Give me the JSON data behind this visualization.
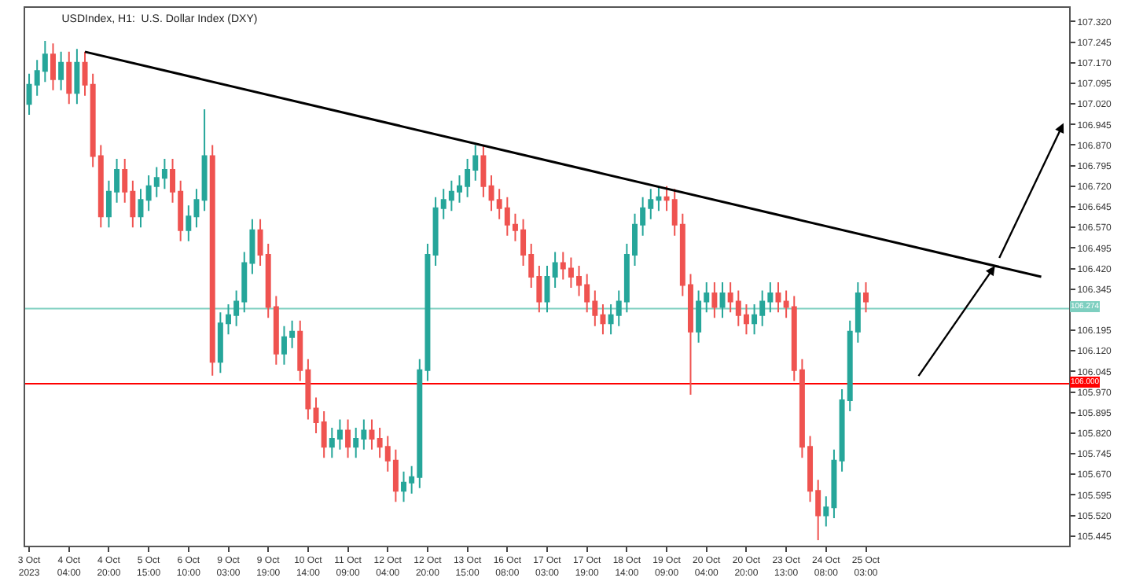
{
  "chart_data": {
    "type": "candlestick",
    "title": "USDIndex, H1:  U.S. Dollar Index (DXY)",
    "categories": [
      "3 Oct 2023",
      null,
      null,
      null,
      null,
      "4 Oct 04:00",
      null,
      null,
      null,
      null,
      "4 Oct 20:00",
      null,
      null,
      null,
      null,
      "5 Oct 15:00",
      null,
      null,
      null,
      null,
      "6 Oct 10:00",
      null,
      null,
      null,
      null,
      "9 Oct 03:00",
      null,
      null,
      null,
      null,
      "9 Oct 19:00",
      null,
      null,
      null,
      null,
      "10 Oct 14:00",
      null,
      null,
      null,
      null,
      "11 Oct 09:00",
      null,
      null,
      null,
      null,
      "12 Oct 04:00",
      null,
      null,
      null,
      null,
      "12 Oct 20:00",
      null,
      null,
      null,
      null,
      "13 Oct 15:00",
      null,
      null,
      null,
      null,
      "16 Oct 08:00",
      null,
      null,
      null,
      null,
      "17 Oct 03:00",
      null,
      null,
      null,
      null,
      "17 Oct 19:00",
      null,
      null,
      null,
      null,
      "18 Oct 14:00",
      null,
      null,
      null,
      null,
      "19 Oct 09:00",
      null,
      null,
      null,
      null,
      "20 Oct 04:00",
      null,
      null,
      null,
      null,
      "20 Oct 20:00",
      null,
      null,
      null,
      null,
      "23 Oct 13:00",
      null,
      null,
      null,
      null,
      "24 Oct 08:00",
      null,
      null,
      null,
      null,
      "25 Oct 03:00",
      null,
      null,
      null,
      null,
      null,
      null,
      null,
      null,
      null,
      null,
      null,
      null,
      null,
      null,
      null,
      null,
      null,
      null,
      null,
      null,
      null,
      null,
      null,
      null,
      null
    ],
    "colors": [
      "#26a69a",
      "#26a69a",
      "#26a69a",
      "#ef5350",
      "#26a69a",
      "#ef5350",
      "#26a69a",
      "#ef5350",
      "#ef5350",
      "#ef5350",
      "#26a69a",
      "#26a69a",
      "#ef5350",
      "#ef5350",
      "#26a69a",
      "#26a69a",
      "#26a69a",
      "#26a69a",
      "#ef5350",
      "#ef5350",
      "#26a69a",
      "#26a69a",
      "#26a69a",
      "#ef5350",
      "#26a69a",
      "#26a69a",
      "#26a69a",
      "#26a69a",
      "#26a69a",
      "#ef5350",
      "#ef5350",
      "#ef5350",
      "#26a69a",
      "#26a69a",
      "#ef5350",
      "#ef5350",
      "#ef5350",
      "#ef5350",
      "#26a69a",
      "#26a69a",
      "#ef5350",
      "#26a69a",
      "#26a69a",
      "#ef5350",
      "#ef5350",
      "#ef5350",
      "#ef5350",
      "#26a69a",
      "#26a69a",
      "#26a69a",
      "#26a69a",
      "#26a69a",
      "#26a69a",
      "#26a69a",
      "#26a69a",
      "#26a69a",
      "#26a69a",
      "#ef5350",
      "#ef5350",
      "#ef5350",
      "#ef5350",
      "#ef5350",
      "#ef5350",
      "#ef5350",
      "#ef5350",
      "#26a69a",
      "#26a69a",
      "#ef5350",
      "#ef5350",
      "#ef5350",
      "#ef5350",
      "#ef5350",
      "#ef5350",
      "#26a69a",
      "#26a69a",
      "#26a69a",
      "#26a69a",
      "#26a69a",
      "#26a69a",
      "#26a69a",
      "#ef5350",
      "#ef5350",
      "#ef5350",
      "#ef5350",
      "#26a69a",
      "#26a69a",
      "#ef5350",
      "#26a69a",
      "#ef5350",
      "#ef5350",
      "#ef5350",
      "#26a69a",
      "#26a69a",
      "#26a69a",
      "#ef5350",
      "#ef5350",
      "#ef5350",
      "#ef5350",
      "#ef5350",
      "#ef5350",
      "#26a69a",
      "#26a69a",
      "#26a69a",
      "#26a69a",
      "#26a69a",
      "#ef5350",
      null,
      null,
      null,
      null,
      null,
      null,
      null,
      null,
      null,
      null,
      null,
      null,
      null,
      null,
      null,
      null,
      null,
      null,
      null,
      null,
      null,
      null,
      null,
      null,
      null
    ],
    "ohlc": [
      [
        107.02,
        107.13,
        106.98,
        107.09
      ],
      [
        107.09,
        107.18,
        107.05,
        107.14
      ],
      [
        107.14,
        107.25,
        107.1,
        107.2
      ],
      [
        107.2,
        107.24,
        107.07,
        107.11
      ],
      [
        107.11,
        107.21,
        107.07,
        107.17
      ],
      [
        107.17,
        107.21,
        107.02,
        107.06
      ],
      [
        107.06,
        107.22,
        107.02,
        107.17
      ],
      [
        107.17,
        107.21,
        107.05,
        107.09
      ],
      [
        107.09,
        107.13,
        106.79,
        106.83
      ],
      [
        106.83,
        106.87,
        106.57,
        106.61
      ],
      [
        106.61,
        106.74,
        106.57,
        106.7
      ],
      [
        106.7,
        106.82,
        106.66,
        106.78
      ],
      [
        106.78,
        106.82,
        106.66,
        106.7
      ],
      [
        106.7,
        106.74,
        106.57,
        106.61
      ],
      [
        106.61,
        106.71,
        106.57,
        106.67
      ],
      [
        106.67,
        106.76,
        106.63,
        106.72
      ],
      [
        106.72,
        106.79,
        106.68,
        106.75
      ],
      [
        106.75,
        106.82,
        106.71,
        106.78
      ],
      [
        106.78,
        106.82,
        106.66,
        106.7
      ],
      [
        106.7,
        106.74,
        106.52,
        106.56
      ],
      [
        106.56,
        106.65,
        106.52,
        106.61
      ],
      [
        106.61,
        106.71,
        106.57,
        106.67
      ],
      [
        106.67,
        107.0,
        106.63,
        106.83
      ],
      [
        106.83,
        106.87,
        106.03,
        106.08
      ],
      [
        106.08,
        106.26,
        106.04,
        106.22
      ],
      [
        106.22,
        106.29,
        106.18,
        106.25
      ],
      [
        106.25,
        106.34,
        106.21,
        106.3
      ],
      [
        106.3,
        106.48,
        106.26,
        106.44
      ],
      [
        106.44,
        106.6,
        106.4,
        106.56
      ],
      [
        106.56,
        106.6,
        106.43,
        106.47
      ],
      [
        106.47,
        106.51,
        106.24,
        106.28
      ],
      [
        106.28,
        106.32,
        106.07,
        106.11
      ],
      [
        106.11,
        106.21,
        106.07,
        106.17
      ],
      [
        106.17,
        106.23,
        106.13,
        106.19
      ],
      [
        106.19,
        106.23,
        106.01,
        106.05
      ],
      [
        106.05,
        106.09,
        105.87,
        105.91
      ],
      [
        105.91,
        105.95,
        105.82,
        105.86
      ],
      [
        105.86,
        105.9,
        105.73,
        105.77
      ],
      [
        105.77,
        105.84,
        105.73,
        105.8
      ],
      [
        105.8,
        105.87,
        105.76,
        105.83
      ],
      [
        105.83,
        105.87,
        105.73,
        105.77
      ],
      [
        105.77,
        105.84,
        105.73,
        105.8
      ],
      [
        105.8,
        105.87,
        105.76,
        105.83
      ],
      [
        105.83,
        105.87,
        105.76,
        105.8
      ],
      [
        105.8,
        105.84,
        105.73,
        105.77
      ],
      [
        105.77,
        105.81,
        105.68,
        105.72
      ],
      [
        105.72,
        105.76,
        105.57,
        105.61
      ],
      [
        105.61,
        105.68,
        105.57,
        105.64
      ],
      [
        105.64,
        105.7,
        105.6,
        105.66
      ],
      [
        105.66,
        106.09,
        105.62,
        106.05
      ],
      [
        106.05,
        106.51,
        106.01,
        106.47
      ],
      [
        106.47,
        106.68,
        106.43,
        106.64
      ],
      [
        106.64,
        106.71,
        106.6,
        106.67
      ],
      [
        106.67,
        106.74,
        106.63,
        106.7
      ],
      [
        106.7,
        106.76,
        106.66,
        106.72
      ],
      [
        106.72,
        106.82,
        106.68,
        106.78
      ],
      [
        106.78,
        106.87,
        106.74,
        106.83
      ],
      [
        106.83,
        106.87,
        106.68,
        106.72
      ],
      [
        106.72,
        106.76,
        106.63,
        106.67
      ],
      [
        106.67,
        106.71,
        106.6,
        106.64
      ],
      [
        106.64,
        106.68,
        106.54,
        106.58
      ],
      [
        106.58,
        106.62,
        106.52,
        106.56
      ],
      [
        106.56,
        106.6,
        106.43,
        106.47
      ],
      [
        106.47,
        106.51,
        106.35,
        106.39
      ],
      [
        106.39,
        106.43,
        106.26,
        106.3
      ],
      [
        106.3,
        106.43,
        106.26,
        106.39
      ],
      [
        106.39,
        106.48,
        106.35,
        106.44
      ],
      [
        106.44,
        106.48,
        106.38,
        106.42
      ],
      [
        106.42,
        106.46,
        106.35,
        106.39
      ],
      [
        106.39,
        106.43,
        106.32,
        106.36
      ],
      [
        106.36,
        106.4,
        106.26,
        106.3
      ],
      [
        106.3,
        106.34,
        106.21,
        106.25
      ],
      [
        106.25,
        106.29,
        106.18,
        106.22
      ],
      [
        106.22,
        106.29,
        106.18,
        106.25
      ],
      [
        106.25,
        106.34,
        106.21,
        106.3
      ],
      [
        106.3,
        106.51,
        106.26,
        106.47
      ],
      [
        106.47,
        106.62,
        106.43,
        106.58
      ],
      [
        106.58,
        106.68,
        106.54,
        106.64
      ],
      [
        106.64,
        106.71,
        106.6,
        106.67
      ],
      [
        106.67,
        106.72,
        106.63,
        106.68
      ],
      [
        106.68,
        106.72,
        106.63,
        106.67
      ],
      [
        106.67,
        106.71,
        106.54,
        106.58
      ],
      [
        106.58,
        106.62,
        106.32,
        106.36
      ],
      [
        106.36,
        106.4,
        105.96,
        106.19
      ],
      [
        106.19,
        106.34,
        106.15,
        106.3
      ],
      [
        106.3,
        106.37,
        106.26,
        106.33
      ],
      [
        106.33,
        106.37,
        106.24,
        106.28
      ],
      [
        106.28,
        106.37,
        106.24,
        106.33
      ],
      [
        106.33,
        106.37,
        106.26,
        106.3
      ],
      [
        106.3,
        106.34,
        106.21,
        106.25
      ],
      [
        106.25,
        106.29,
        106.18,
        106.22
      ],
      [
        106.22,
        106.29,
        106.18,
        106.25
      ],
      [
        106.25,
        106.34,
        106.21,
        106.3
      ],
      [
        106.3,
        106.37,
        106.26,
        106.33
      ],
      [
        106.33,
        106.37,
        106.26,
        106.3
      ],
      [
        106.3,
        106.34,
        106.24,
        106.28
      ],
      [
        106.28,
        106.32,
        106.01,
        106.05
      ],
      [
        106.05,
        106.09,
        105.73,
        105.77
      ],
      [
        105.77,
        105.81,
        105.57,
        105.61
      ],
      [
        105.61,
        105.65,
        105.43,
        105.52
      ],
      [
        105.52,
        105.59,
        105.48,
        105.55
      ],
      [
        105.55,
        105.76,
        105.51,
        105.72
      ],
      [
        105.72,
        105.98,
        105.68,
        105.94
      ],
      [
        105.94,
        106.23,
        105.9,
        106.19
      ],
      [
        106.19,
        106.37,
        106.15,
        106.33
      ],
      [
        106.33,
        106.37,
        106.26,
        106.3
      ],
      null,
      null,
      null,
      null,
      null,
      null,
      null,
      null,
      null,
      null,
      null,
      null,
      null,
      null,
      null,
      null,
      null,
      null,
      null,
      null,
      null,
      null,
      null,
      null,
      null
    ],
    "series": [
      {
        "type": "line",
        "color": "#000000",
        "values": [
          null,
          null,
          null,
          null,
          null,
          null,
          null,
          107.21,
          null,
          null,
          null,
          null,
          null,
          null,
          null,
          null,
          null,
          null,
          null,
          null,
          null,
          null,
          null,
          null,
          null,
          null,
          null,
          null,
          null,
          null,
          null,
          null,
          null,
          null,
          null,
          null,
          null,
          null,
          null,
          null,
          null,
          null,
          null,
          null,
          null,
          null,
          null,
          null,
          null,
          null,
          null,
          null,
          null,
          null,
          null,
          null,
          null,
          null,
          null,
          null,
          null,
          null,
          null,
          null,
          null,
          null,
          null,
          null,
          null,
          null,
          null,
          null,
          null,
          null,
          null,
          null,
          null,
          null,
          null,
          null,
          null,
          null,
          null,
          null,
          null,
          null,
          null,
          null,
          null,
          null,
          null,
          null,
          null,
          null,
          null,
          null,
          null,
          null,
          null,
          null,
          null,
          null,
          null,
          null,
          null,
          null,
          null,
          null,
          null,
          null,
          null,
          null,
          null,
          null,
          null,
          null,
          null,
          null,
          null,
          null,
          null,
          null,
          null,
          null,
          null,
          null,
          null,
          106.39,
          null,
          null,
          null
        ]
      }
    ],
    "ylim": [
      105.41,
      107.37
    ],
    "yticks": [
      {
        "value": 105.445,
        "label": "105.445"
      },
      {
        "value": 105.52,
        "label": "105.520"
      },
      {
        "value": 105.595,
        "label": "105.595"
      },
      {
        "value": 105.67,
        "label": "105.670"
      },
      {
        "value": 105.745,
        "label": "105.745"
      },
      {
        "value": 105.82,
        "label": "105.820"
      },
      {
        "value": 105.895,
        "label": "105.895"
      },
      {
        "value": 105.97,
        "label": "105.970"
      },
      {
        "value": 106.045,
        "label": "106.045"
      },
      {
        "value": 106.12,
        "label": "106.120"
      },
      {
        "value": 106.195,
        "label": "106.195"
      },
      {
        "value": 106.345,
        "label": "106.345"
      },
      {
        "value": 106.42,
        "label": "106.420"
      },
      {
        "value": 106.495,
        "label": "106.495"
      },
      {
        "value": 106.57,
        "label": "106.570"
      },
      {
        "value": 106.645,
        "label": "106.645"
      },
      {
        "value": 106.72,
        "label": "106.720"
      },
      {
        "value": 106.795,
        "label": "106.795"
      },
      {
        "value": 106.87,
        "label": "106.870"
      },
      {
        "value": 106.945,
        "label": "106.945"
      },
      {
        "value": 107.02,
        "label": "107.020"
      },
      {
        "value": 107.095,
        "label": "107.095"
      },
      {
        "value": 107.17,
        "label": "107.170"
      },
      {
        "value": 107.245,
        "label": "107.245"
      },
      {
        "value": 107.32,
        "label": "107.320"
      }
    ],
    "ref_lines": [
      {
        "axis": "y",
        "value": 106.274,
        "label": "106.274",
        "color": "#7ecfc0"
      },
      {
        "axis": "y",
        "value": 106.0,
        "label": "106.000",
        "color": "#ff0000"
      }
    ]
  }
}
